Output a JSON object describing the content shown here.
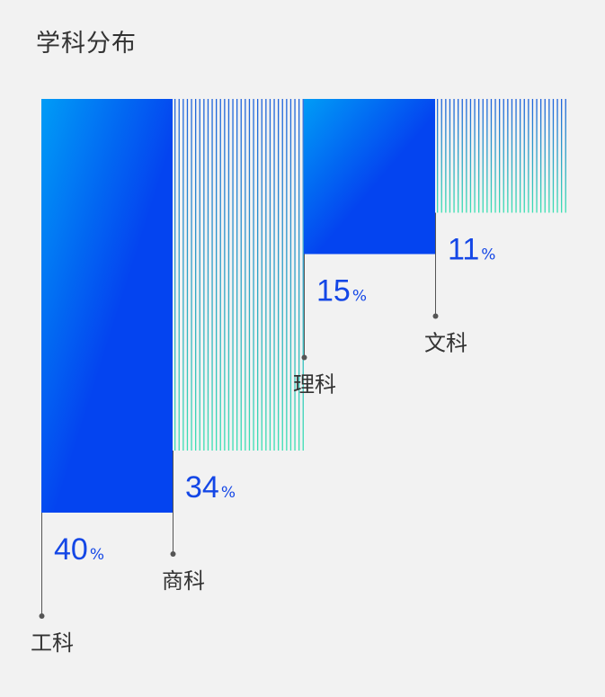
{
  "colors": {
    "background": "#f2f2f2",
    "solid_top": "#009cf6",
    "solid_bottom": "#0444f0",
    "stripe_top": "#1f63dc",
    "stripe_bottom": "#3ce0b4",
    "value_text": "#1447e6",
    "label_text": "#333333",
    "leader_line": "#555555"
  },
  "chart_data": {
    "type": "bar",
    "title": "学科分布",
    "categories": [
      "工科",
      "商科",
      "理科",
      "文科"
    ],
    "values": [
      40,
      34,
      15,
      11
    ],
    "unit": "%",
    "styles": [
      "solid",
      "striped",
      "solid",
      "striped"
    ],
    "ylim": [
      0,
      100
    ],
    "xlabel": "",
    "ylabel": "",
    "grid": false,
    "legend": "none"
  }
}
